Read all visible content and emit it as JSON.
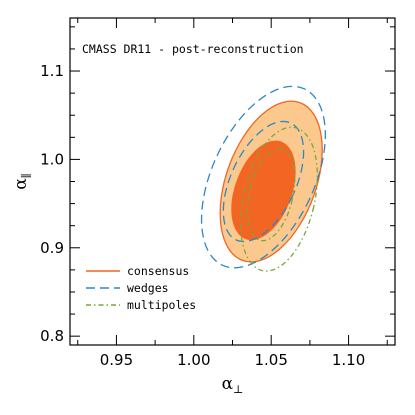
{
  "chart_data": {
    "type": "contour",
    "title": "CMASS DR11 - post-reconstruction",
    "xlabel": {
      "symbol": "α",
      "subscript": "⊥"
    },
    "ylabel": {
      "symbol": "α",
      "subscript": "∥"
    },
    "xlim": [
      0.92,
      1.13
    ],
    "ylim": [
      0.79,
      1.16
    ],
    "xticks": [
      0.95,
      1.0,
      1.05,
      1.1
    ],
    "xtick_labels": [
      "0.95",
      "1.00",
      "1.05",
      "1.10"
    ],
    "yticks": [
      0.8,
      0.9,
      1.0,
      1.1
    ],
    "ytick_labels": [
      "0.8",
      "0.9",
      "1.0",
      "1.1"
    ],
    "series": [
      {
        "name": "consensus",
        "color": "#f26522",
        "style": "filled",
        "contours": [
          {
            "level": "2-sigma",
            "center": [
              1.05,
              0.975
            ],
            "semi_axes": [
              0.029,
              0.095
            ],
            "angle_deg": 20,
            "fill": "#fbc98e"
          },
          {
            "level": "1-sigma",
            "center": [
              1.045,
              0.965
            ],
            "semi_axes": [
              0.018,
              0.058
            ],
            "angle_deg": 20,
            "fill": "#f26522"
          }
        ]
      },
      {
        "name": "wedges",
        "color": "#2f86c6",
        "style": "dashed",
        "contours": [
          {
            "level": "2-sigma",
            "center": [
              1.045,
              0.98
            ],
            "semi_axes": [
              0.033,
              0.11
            ],
            "angle_deg": 25
          },
          {
            "level": "1-sigma",
            "center": [
              1.045,
              0.975
            ],
            "semi_axes": [
              0.021,
              0.073
            ],
            "angle_deg": 25
          }
        ]
      },
      {
        "name": "multipoles",
        "color": "#7aa63a",
        "style": "dash-dot",
        "contours": [
          {
            "level": "2-sigma",
            "center": [
              1.055,
              0.955
            ],
            "semi_axes": [
              0.023,
              0.083
            ],
            "angle_deg": 13
          },
          {
            "level": "1-sigma",
            "center": [
              1.05,
              0.96
            ],
            "semi_axes": [
              0.014,
              0.053
            ],
            "angle_deg": 13
          }
        ]
      }
    ],
    "legend": {
      "position": "lower-left",
      "entries": [
        "consensus",
        "wedges",
        "multipoles"
      ]
    }
  }
}
